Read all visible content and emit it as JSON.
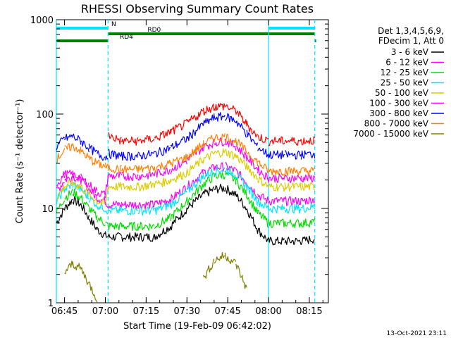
{
  "chart_data": {
    "type": "line",
    "title": "RHESSI Observing Summary Count Rates",
    "xlabel": "Start Time (19-Feb-09 06:42:02)",
    "ylabel": "Count Rate (s⁻¹ detector⁻¹)",
    "yscale": "log",
    "ylim": [
      1,
      1000
    ],
    "xlim": [
      "06:42",
      "08:22"
    ],
    "x_ticks": [
      "06:45",
      "07:00",
      "07:15",
      "07:30",
      "07:45",
      "08:00",
      "08:15"
    ],
    "y_ticks": [
      "1",
      "10",
      "100",
      "1000"
    ],
    "grid": false,
    "legend_position": "right",
    "legend_header": [
      "Det 1,3,4,5,6,9,",
      "FDecim 1, Att 0"
    ],
    "timestamp": "13-Oct-2021 23:11",
    "flags": [
      {
        "label": "N",
        "color": "#00e5ff",
        "intervals": [
          [
            "06:42",
            "07:01"
          ],
          [
            "08:00",
            "08:17"
          ]
        ]
      },
      {
        "label": "RD0",
        "color": "#008000",
        "intervals": [
          [
            "07:01",
            "08:17"
          ]
        ]
      },
      {
        "label": "RD4",
        "color": "#008000",
        "intervals": [
          [
            "06:42",
            "07:01"
          ],
          [
            "08:17",
            "08:17.5"
          ]
        ]
      }
    ],
    "vertical_markers": {
      "solid": [
        "06:42",
        "08:00"
      ],
      "dashed": [
        "07:01",
        "08:17"
      ]
    },
    "x": [
      "06:42",
      "06:45",
      "06:48",
      "06:51",
      "06:54",
      "06:57",
      "07:00",
      "07:01",
      "07:06",
      "07:12",
      "07:18",
      "07:24",
      "07:30",
      "07:36",
      "07:40",
      "07:44",
      "07:48",
      "07:52",
      "07:56",
      "08:00",
      "08:06",
      "08:12",
      "08:17"
    ],
    "series": [
      {
        "name": "3 - 6 keV",
        "color": "#000000",
        "values": [
          7,
          10,
          12.5,
          11,
          8,
          6,
          5.2,
          5,
          5,
          5,
          5,
          6.5,
          10,
          14,
          16,
          16.5,
          14,
          10,
          6,
          4.5,
          4.5,
          4.5,
          4.8
        ]
      },
      {
        "name": "6 - 12 keV",
        "color": "#ff00ff",
        "values": [
          15,
          20,
          22,
          20,
          16,
          13,
          12,
          11,
          11,
          11,
          11,
          12.5,
          17,
          24,
          27,
          28,
          25,
          19,
          14,
          12,
          12,
          12,
          12.5
        ]
      },
      {
        "name": "12 - 25 keV",
        "color": "#00dd00",
        "values": [
          9,
          13,
          15,
          13,
          10,
          8,
          7,
          6.5,
          6.5,
          6.5,
          6.5,
          8,
          12,
          18,
          22,
          23,
          20,
          14,
          9,
          7,
          7,
          7,
          7.2
        ]
      },
      {
        "name": "25 - 50 keV",
        "color": "#00e5ff",
        "values": [
          12,
          16,
          18,
          16,
          13,
          11,
          10,
          9.5,
          9.5,
          9.5,
          9.5,
          11,
          15,
          22,
          25,
          26,
          23,
          17,
          12,
          10,
          10,
          10,
          10.5
        ]
      },
      {
        "name": "50 - 100 keV",
        "color": "#ddcc00",
        "values": [
          13,
          17,
          19,
          17,
          14,
          12,
          11,
          17,
          17,
          17,
          18,
          20,
          24,
          33,
          38,
          40,
          36,
          28,
          21,
          17,
          17,
          17,
          17
        ]
      },
      {
        "name": "100 - 300 keV",
        "color": "#ff00ff",
        "values": [
          18,
          23,
          23,
          21,
          18,
          15,
          14,
          22,
          22,
          22,
          23,
          26,
          32,
          45,
          50,
          52,
          46,
          35,
          26,
          21,
          21,
          21,
          21
        ]
      },
      {
        "name": "300 - 800 keV",
        "color": "#0000ff",
        "values": [
          45,
          55,
          58,
          52,
          44,
          38,
          35,
          38,
          36,
          36,
          38,
          44,
          55,
          78,
          92,
          95,
          85,
          62,
          45,
          37,
          37,
          37,
          38
        ]
      },
      {
        "name": "800 - 7000 keV",
        "color": "#ff8000",
        "values": [
          33,
          42,
          46,
          41,
          34,
          30,
          28,
          27,
          26,
          26,
          27,
          30,
          35,
          48,
          56,
          58,
          52,
          40,
          31,
          25,
          25,
          25,
          25
        ]
      },
      {
        "name": "7000 - 15000 keV",
        "color": "#808000",
        "values": [
          null,
          2.1,
          2.6,
          2.3,
          1.6,
          1.1,
          null,
          null,
          null,
          null,
          null,
          null,
          null,
          1.8,
          2.8,
          3.2,
          2.6,
          1.4,
          null,
          null,
          null,
          null,
          null
        ]
      }
    ],
    "extra_series": [
      {
        "name": "100 - 300 keV (red trace)",
        "color": "#ff0000",
        "legend": false,
        "values": [
          null,
          null,
          null,
          null,
          null,
          null,
          null,
          60,
          52,
          52,
          55,
          65,
          80,
          108,
          120,
          122,
          108,
          78,
          58,
          52,
          52,
          52,
          53
        ]
      }
    ]
  }
}
